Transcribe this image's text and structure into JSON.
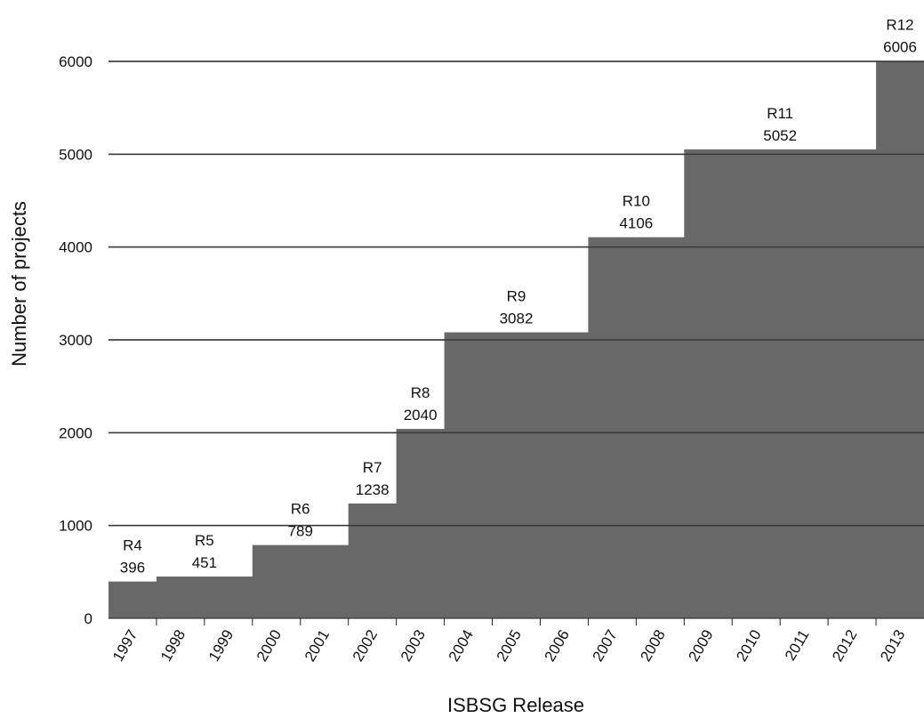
{
  "chart_data": {
    "type": "area",
    "title": "",
    "xlabel": "ISBSG Release",
    "ylabel": "Number of projects",
    "ylim": [
      0,
      6000
    ],
    "yticks": [
      0,
      1000,
      2000,
      3000,
      4000,
      5000,
      6000
    ],
    "categories": [
      "1997",
      "1998",
      "1999",
      "2000",
      "2001",
      "2002",
      "2003",
      "2004",
      "2005",
      "2006",
      "2007",
      "2008",
      "2009",
      "2010",
      "2011",
      "2012",
      "2013"
    ],
    "values": [
      396,
      451,
      451,
      789,
      789,
      1238,
      2040,
      3082,
      3082,
      3082,
      4106,
      4106,
      5052,
      5052,
      5052,
      5052,
      6006
    ],
    "releases": [
      {
        "name": "R4",
        "value": 396,
        "year": "1997"
      },
      {
        "name": "R5",
        "value": 451,
        "year": "1998"
      },
      {
        "name": "R6",
        "value": 789,
        "year": "2000"
      },
      {
        "name": "R7",
        "value": 1238,
        "year": "2002"
      },
      {
        "name": "R8",
        "value": 2040,
        "year": "2003"
      },
      {
        "name": "R9",
        "value": 3082,
        "year": "2004"
      },
      {
        "name": "R10",
        "value": 4106,
        "year": "2007"
      },
      {
        "name": "R11",
        "value": 5052,
        "year": "2009"
      },
      {
        "name": "R12",
        "value": 6006,
        "year": "2013"
      }
    ],
    "fill_color": "#686868",
    "grid": true,
    "legend": "none"
  }
}
